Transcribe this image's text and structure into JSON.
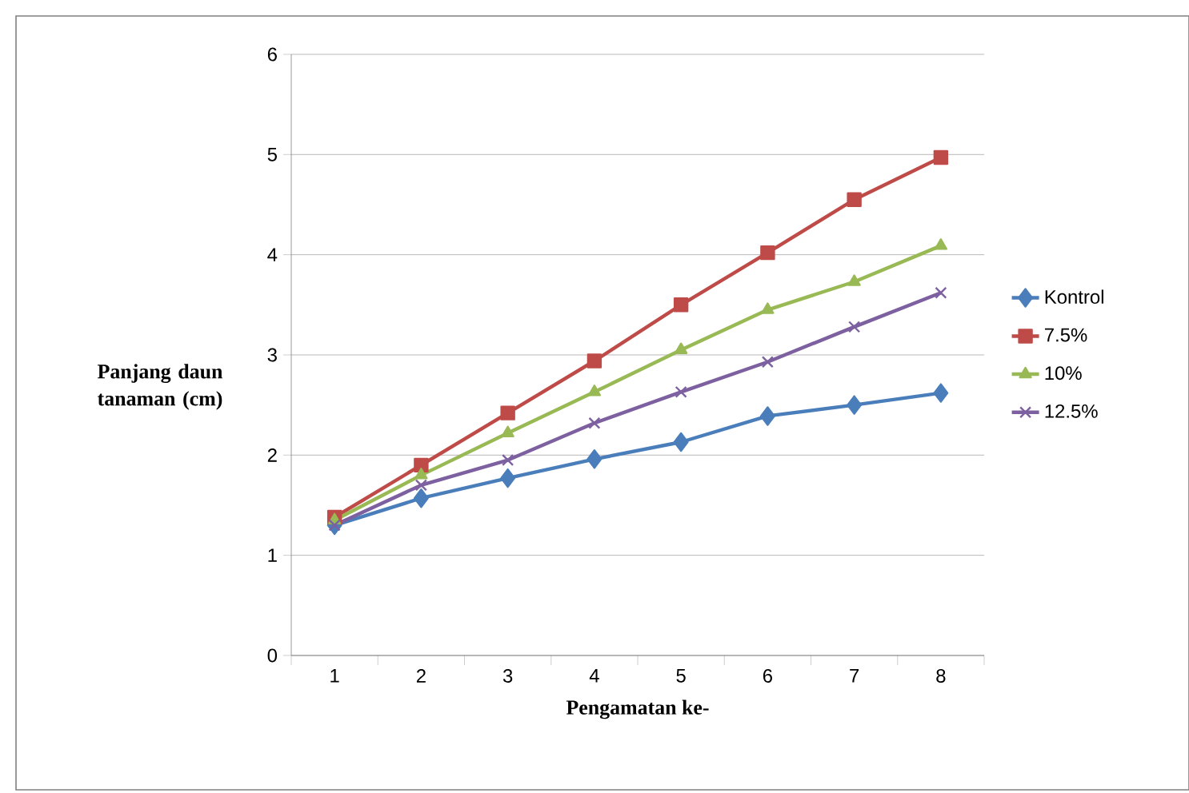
{
  "chart_data": {
    "type": "line",
    "xlabel": "Pengamatan ke-",
    "ylabel": "Panjang daun tanaman (cm)",
    "categories": [
      "1",
      "2",
      "3",
      "4",
      "5",
      "6",
      "7",
      "8"
    ],
    "series": [
      {
        "name": "Kontrol",
        "color": "#4a7ebb",
        "marker": "diamond",
        "values": [
          1.3,
          1.57,
          1.77,
          1.96,
          2.13,
          2.39,
          2.5,
          2.62
        ]
      },
      {
        "name": "7.5%",
        "color": "#be4b48",
        "marker": "square",
        "values": [
          1.38,
          1.9,
          2.42,
          2.94,
          3.5,
          4.02,
          4.55,
          4.97
        ]
      },
      {
        "name": "10%",
        "color": "#98b954",
        "marker": "triangle",
        "values": [
          1.35,
          1.8,
          2.22,
          2.63,
          3.05,
          3.45,
          3.73,
          4.09
        ]
      },
      {
        "name": "12.5%",
        "color": "#7d60a0",
        "marker": "cross",
        "values": [
          1.3,
          1.7,
          1.95,
          2.32,
          2.63,
          2.93,
          3.28,
          3.62
        ]
      }
    ],
    "ylim": [
      0,
      6
    ],
    "yticks": [
      0,
      1,
      2,
      3,
      4,
      5,
      6
    ],
    "grid": "y",
    "legend": "right"
  }
}
